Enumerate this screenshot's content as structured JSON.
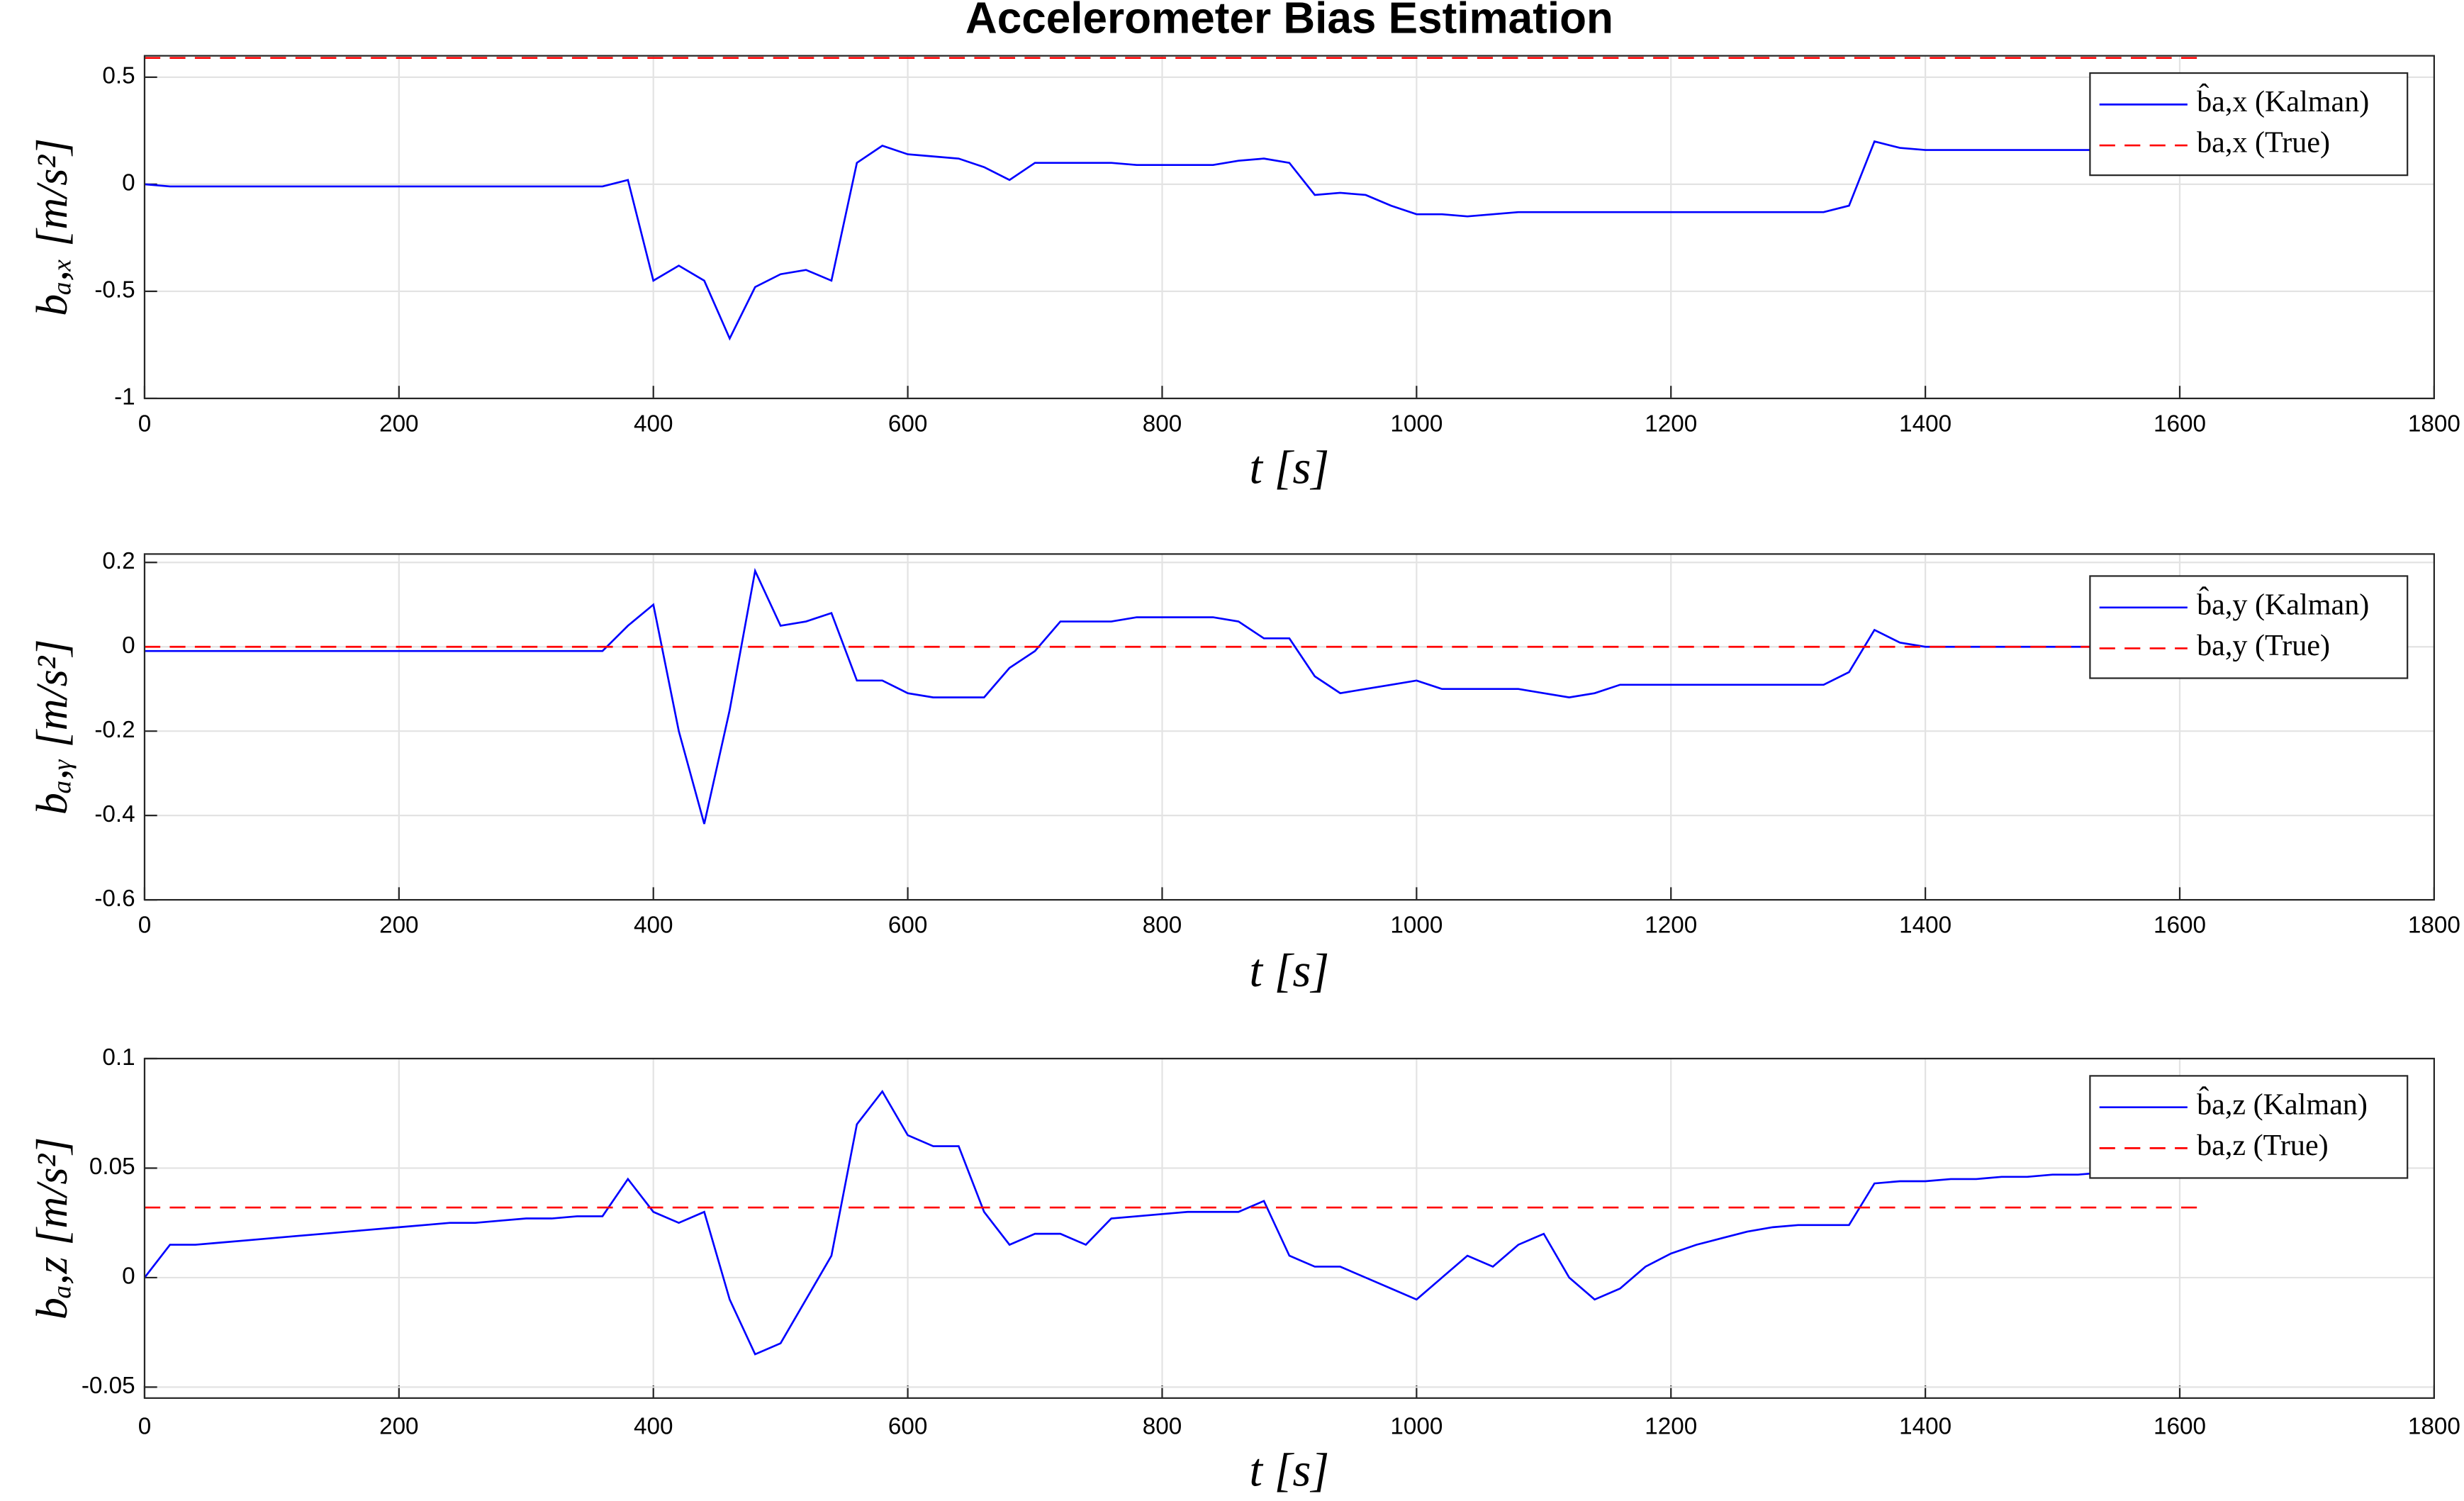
{
  "chart_data": [
    {
      "type": "line",
      "title": "Accelerometer Bias Estimation",
      "xlabel": "t [s]",
      "ylabel": "bₐ,ₓ [m/s²]",
      "xlim": [
        0,
        1800
      ],
      "xticks": [
        0,
        200,
        400,
        600,
        800,
        1000,
        1200,
        1400,
        1600,
        1800
      ],
      "ylim": [
        -1,
        0.6
      ],
      "yticks": [
        -1,
        -0.5,
        0,
        0.5
      ],
      "grid": true,
      "legend": "upper right",
      "x": [
        0,
        20,
        40,
        60,
        80,
        100,
        120,
        140,
        160,
        180,
        200,
        220,
        240,
        260,
        280,
        300,
        320,
        340,
        360,
        380,
        400,
        420,
        440,
        460,
        480,
        500,
        520,
        540,
        560,
        580,
        600,
        620,
        640,
        660,
        680,
        700,
        720,
        740,
        760,
        780,
        800,
        820,
        840,
        860,
        880,
        900,
        920,
        940,
        960,
        980,
        1000,
        1020,
        1040,
        1060,
        1080,
        1100,
        1120,
        1140,
        1160,
        1180,
        1200,
        1220,
        1240,
        1260,
        1280,
        1300,
        1320,
        1340,
        1360,
        1380,
        1400,
        1420,
        1440,
        1460,
        1480,
        1500,
        1520,
        1540,
        1560,
        1580,
        1600
      ],
      "series": [
        {
          "name": "b̂a,x (Kalman)",
          "color": "#0000ff",
          "dash": false,
          "values": [
            0,
            -0.01,
            -0.01,
            -0.01,
            -0.01,
            -0.01,
            -0.01,
            -0.01,
            -0.01,
            -0.01,
            -0.01,
            -0.01,
            -0.01,
            -0.01,
            -0.01,
            -0.01,
            -0.01,
            -0.01,
            -0.01,
            0.02,
            -0.45,
            -0.38,
            -0.45,
            -0.72,
            -0.48,
            -0.42,
            -0.4,
            -0.45,
            0.1,
            0.18,
            0.14,
            0.13,
            0.12,
            0.08,
            0.02,
            0.1,
            0.1,
            0.1,
            0.1,
            0.09,
            0.09,
            0.09,
            0.09,
            0.11,
            0.12,
            0.1,
            -0.05,
            -0.04,
            -0.05,
            -0.1,
            -0.14,
            -0.14,
            -0.15,
            -0.14,
            -0.13,
            -0.13,
            -0.13,
            -0.13,
            -0.13,
            -0.13,
            -0.13,
            -0.13,
            -0.13,
            -0.13,
            -0.13,
            -0.13,
            -0.13,
            -0.1,
            0.2,
            0.17,
            0.16,
            0.16,
            0.16,
            0.16,
            0.16,
            0.16,
            0.16,
            0.16,
            0.16,
            0.16,
            0.16
          ]
        },
        {
          "name": "ba,x (True)",
          "color": "#ff0000",
          "dash": true,
          "x": [
            0,
            1620
          ],
          "values": [
            0.59,
            0.59
          ]
        }
      ]
    },
    {
      "type": "line",
      "xlabel": "t [s]",
      "ylabel": "bₐ,ᵧ [m/s²]",
      "xlim": [
        0,
        1800
      ],
      "xticks": [
        0,
        200,
        400,
        600,
        800,
        1000,
        1200,
        1400,
        1600,
        1800
      ],
      "ylim": [
        -0.6,
        0.22
      ],
      "yticks": [
        -0.6,
        -0.4,
        -0.2,
        0,
        0.2
      ],
      "grid": true,
      "legend": "upper right",
      "x": [
        0,
        20,
        40,
        60,
        80,
        100,
        120,
        140,
        160,
        180,
        200,
        220,
        240,
        260,
        280,
        300,
        320,
        340,
        360,
        380,
        400,
        420,
        440,
        460,
        480,
        500,
        520,
        540,
        560,
        580,
        600,
        620,
        640,
        660,
        680,
        700,
        720,
        740,
        760,
        780,
        800,
        820,
        840,
        860,
        880,
        900,
        920,
        940,
        960,
        980,
        1000,
        1020,
        1040,
        1060,
        1080,
        1100,
        1120,
        1140,
        1160,
        1180,
        1200,
        1220,
        1240,
        1260,
        1280,
        1300,
        1320,
        1340,
        1360,
        1380,
        1400,
        1420,
        1440,
        1460,
        1480,
        1500,
        1520,
        1540,
        1560,
        1580,
        1600
      ],
      "series": [
        {
          "name": "b̂a,y (Kalman)",
          "color": "#0000ff",
          "dash": false,
          "values": [
            -0.01,
            -0.01,
            -0.01,
            -0.01,
            -0.01,
            -0.01,
            -0.01,
            -0.01,
            -0.01,
            -0.01,
            -0.01,
            -0.01,
            -0.01,
            -0.01,
            -0.01,
            -0.01,
            -0.01,
            -0.01,
            -0.01,
            0.05,
            0.1,
            -0.2,
            -0.42,
            -0.15,
            0.18,
            0.05,
            0.06,
            0.08,
            -0.08,
            -0.08,
            -0.11,
            -0.12,
            -0.12,
            -0.12,
            -0.05,
            -0.01,
            0.06,
            0.06,
            0.06,
            0.07,
            0.07,
            0.07,
            0.07,
            0.06,
            0.02,
            0.02,
            -0.07,
            -0.11,
            -0.1,
            -0.09,
            -0.08,
            -0.1,
            -0.1,
            -0.1,
            -0.1,
            -0.11,
            -0.12,
            -0.11,
            -0.09,
            -0.09,
            -0.09,
            -0.09,
            -0.09,
            -0.09,
            -0.09,
            -0.09,
            -0.09,
            -0.06,
            0.04,
            0.01,
            0,
            0,
            0,
            0,
            0,
            0,
            0,
            0,
            0,
            0,
            0
          ]
        },
        {
          "name": "ba,y (True)",
          "color": "#ff0000",
          "dash": true,
          "x": [
            0,
            1620
          ],
          "values": [
            0,
            0
          ]
        }
      ]
    },
    {
      "type": "line",
      "xlabel": "t [s]",
      "ylabel": "bₐ,z [m/s²]",
      "xlim": [
        0,
        1800
      ],
      "xticks": [
        0,
        200,
        400,
        600,
        800,
        1000,
        1200,
        1400,
        1600,
        1800
      ],
      "ylim": [
        -0.055,
        0.1
      ],
      "yticks": [
        -0.05,
        0,
        0.05,
        0.1
      ],
      "grid": true,
      "legend": "upper right",
      "x": [
        0,
        20,
        40,
        60,
        80,
        100,
        120,
        140,
        160,
        180,
        200,
        220,
        240,
        260,
        280,
        300,
        320,
        340,
        360,
        380,
        400,
        420,
        440,
        460,
        480,
        500,
        520,
        540,
        560,
        580,
        600,
        620,
        640,
        660,
        680,
        700,
        720,
        740,
        760,
        780,
        800,
        820,
        840,
        860,
        880,
        900,
        920,
        940,
        960,
        980,
        1000,
        1020,
        1040,
        1060,
        1080,
        1100,
        1120,
        1140,
        1160,
        1180,
        1200,
        1220,
        1240,
        1260,
        1280,
        1300,
        1320,
        1340,
        1360,
        1380,
        1400,
        1420,
        1440,
        1460,
        1480,
        1500,
        1520,
        1540,
        1560,
        1580,
        1600
      ],
      "series": [
        {
          "name": "b̂a,z (Kalman)",
          "color": "#0000ff",
          "dash": false,
          "values": [
            0,
            0.015,
            0.015,
            0.016,
            0.017,
            0.018,
            0.019,
            0.02,
            0.021,
            0.022,
            0.023,
            0.024,
            0.025,
            0.025,
            0.026,
            0.027,
            0.027,
            0.028,
            0.028,
            0.045,
            0.03,
            0.025,
            0.03,
            -0.01,
            -0.035,
            -0.03,
            -0.01,
            0.01,
            0.07,
            0.085,
            0.065,
            0.06,
            0.06,
            0.03,
            0.015,
            0.02,
            0.02,
            0.015,
            0.027,
            0.028,
            0.029,
            0.03,
            0.03,
            0.03,
            0.035,
            0.01,
            0.005,
            0.005,
            0,
            -0.005,
            -0.01,
            0,
            0.01,
            0.005,
            0.015,
            0.02,
            0,
            -0.01,
            -0.005,
            0.005,
            0.011,
            0.015,
            0.018,
            0.021,
            0.023,
            0.024,
            0.024,
            0.024,
            0.043,
            0.044,
            0.044,
            0.045,
            0.045,
            0.046,
            0.046,
            0.047,
            0.047,
            0.048,
            0.048,
            0.047,
            0.048
          ]
        },
        {
          "name": "ba,z (True)",
          "color": "#ff0000",
          "dash": true,
          "x": [
            0,
            1620
          ],
          "values": [
            0.032,
            0.032
          ]
        }
      ]
    }
  ]
}
